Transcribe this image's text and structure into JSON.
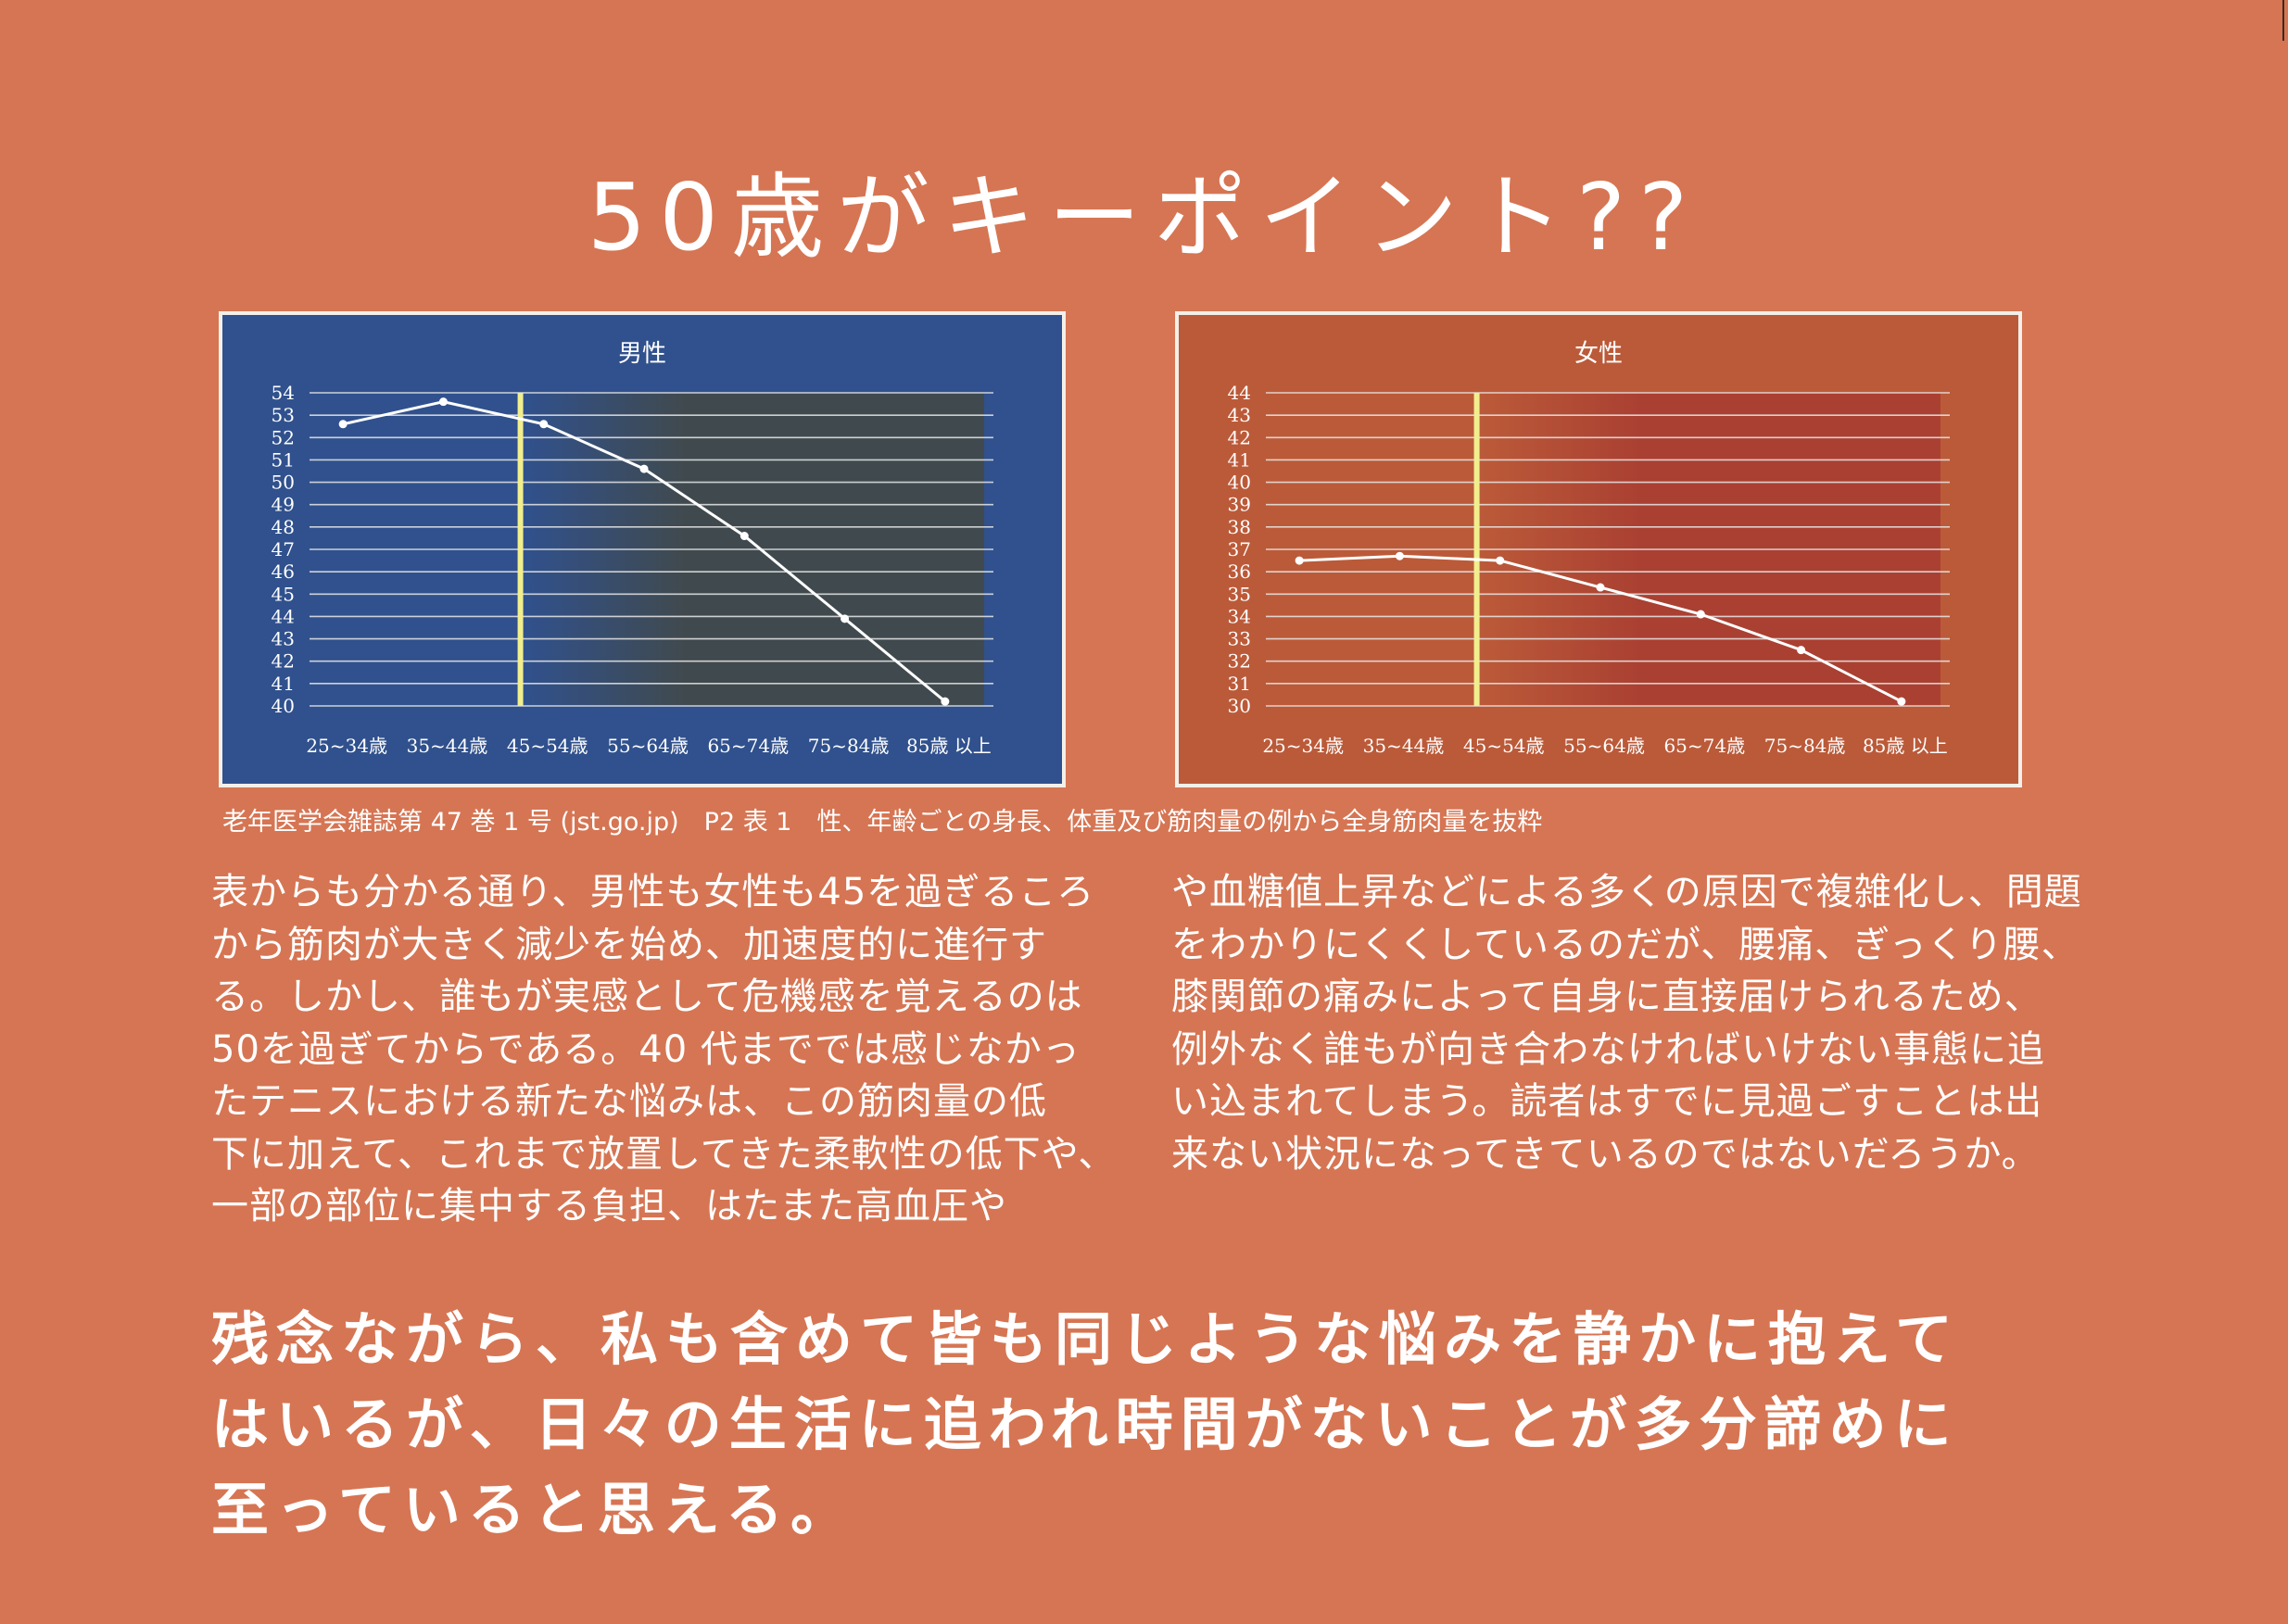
{
  "page": {
    "title": "50歳がキーポイント??",
    "caption": "老年医学会雑誌第 47 巻 1 号 (jst.go.jp)　P2 表 1　性、年齢ごとの身長、体重及び筋肉量の例から全身筋肉量を抜粋",
    "body_left": [
      "表からも分かる通り、男性も女性も45を過ぎるころ",
      "から筋肉が大きく減少を始め、加速度的に進行す",
      "る。しかし、誰もが実感として危機感を覚えるのは",
      "50を過ぎてからである。40 代まででは感じなかっ",
      "たテニスにおける新たな悩みは、この筋肉量の低",
      "下に加えて、これまで放置してきた柔軟性の低下や、",
      "一部の部位に集中する負担、はたまた高血圧や"
    ],
    "body_right": [
      "や血糖値上昇などによる多くの原因で複雑化し、問題",
      "をわかりにくくしているのだが、腰痛、ぎっくり腰、",
      "膝関節の痛みによって自身に直接届けられるため、",
      "例外なく誰もが向き合わなければいけない事態に追",
      "い込まれてしまう。読者はすでに見過ごすことは出",
      "来ない状況になってきているのではないだろうか。"
    ],
    "closing": [
      "残念ながら、私も含めて皆も同じような悩みを静かに抱えて",
      "はいるが、日々の生活に追われ時間がないことが多分諦めに",
      "至っていると思える。"
    ],
    "colors": {
      "page_background": "#d67553",
      "male_background": "#30518d",
      "female_background": "#bb5a39",
      "marker": "#f1ef8d",
      "text": "#ffffff"
    }
  },
  "chart_data": [
    {
      "type": "line",
      "title": "男性",
      "categories": [
        "25~34歳",
        "35~44歳",
        "45~54歳",
        "55~64歳",
        "65~74歳",
        "75~84歳",
        "85歳 以上"
      ],
      "values": [
        52.6,
        53.6,
        52.6,
        50.6,
        47.6,
        43.9,
        40.2
      ],
      "ylim": [
        40,
        54
      ],
      "yticks": [
        "40",
        "41",
        "42",
        "43",
        "44",
        "45",
        "46",
        "47",
        "48",
        "49",
        "50",
        "51",
        "52",
        "53",
        "54"
      ],
      "marker_category": "45~54歳",
      "grid": true,
      "background": "#30518d",
      "shade_color": "#404a4e"
    },
    {
      "type": "line",
      "title": "女性",
      "categories": [
        "25~34歳",
        "35~44歳",
        "45~54歳",
        "55~64歳",
        "65~74歳",
        "75~84歳",
        "85歳 以上"
      ],
      "values": [
        36.5,
        36.7,
        36.5,
        35.3,
        34.1,
        32.5,
        30.2
      ],
      "ylim": [
        30,
        44
      ],
      "yticks": [
        "30",
        "31",
        "32",
        "33",
        "34",
        "35",
        "36",
        "37",
        "38",
        "39",
        "40",
        "41",
        "42",
        "43",
        "44"
      ],
      "marker_category": "45~54歳",
      "grid": true,
      "background": "#bb5a39",
      "shade_color": "#aa4032"
    }
  ]
}
